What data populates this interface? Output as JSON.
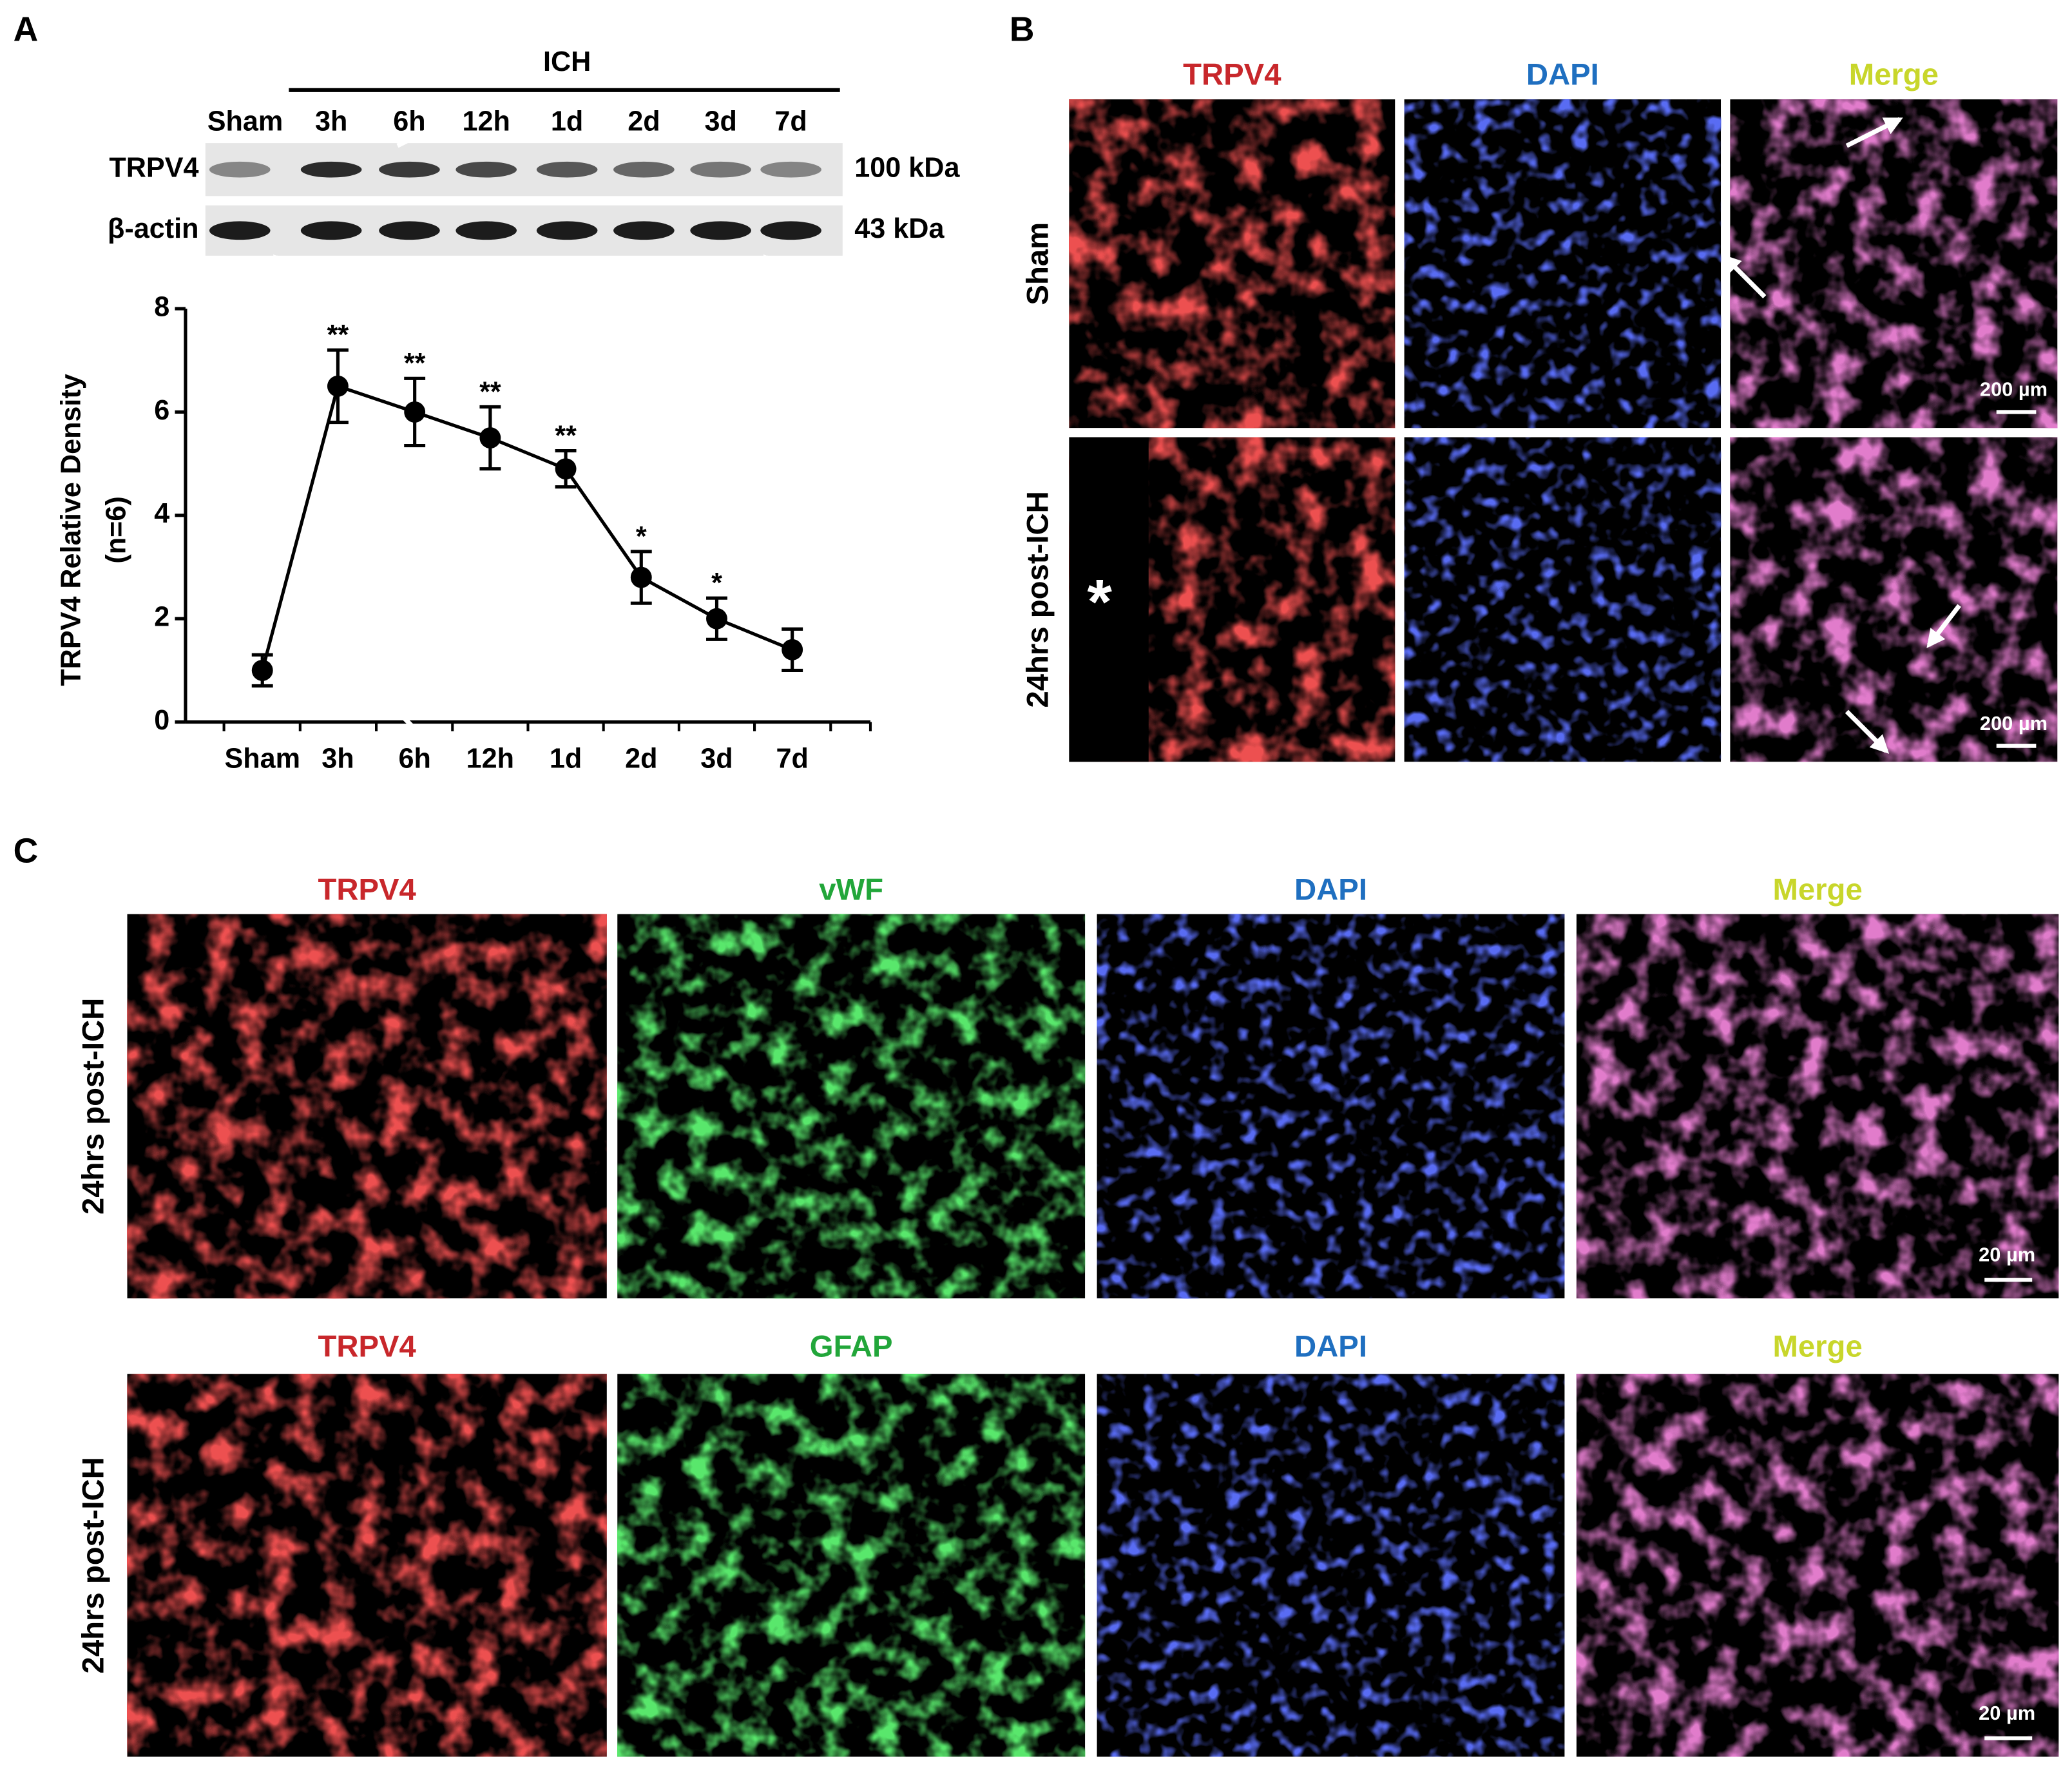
{
  "panel_a": {
    "label": "A",
    "blot": {
      "group": "ICH",
      "lanes": [
        "Sham",
        "3h",
        "6h",
        "12h",
        "1d",
        "2d",
        "3d",
        "7d"
      ],
      "rows": [
        {
          "name": "TRPV4",
          "size": "100 kDa"
        },
        {
          "name": "β-actin",
          "size": "43 kDa"
        }
      ]
    }
  },
  "chart_data": {
    "type": "line",
    "ylabel": [
      "TRPV4 Relative Density",
      "(n=6)"
    ],
    "categories": [
      "Sham",
      "3h",
      "6h",
      "12h",
      "1d",
      "2d",
      "3d",
      "7d"
    ],
    "values": [
      1,
      6.5,
      6,
      5.5,
      4.9,
      2.8,
      2,
      1.4
    ],
    "errors": [
      0.3,
      0.7,
      0.65,
      0.6,
      0.35,
      0.5,
      0.4,
      0.4
    ],
    "significance": [
      null,
      "**",
      "**",
      "**",
      "**",
      "*",
      "*",
      null
    ],
    "color": "#000000",
    "ylim": [
      0,
      8
    ],
    "yticks": [
      0,
      2,
      4,
      6,
      8
    ]
  },
  "panel_b": {
    "label": "B",
    "columns": [
      "TRPV4",
      "DAPI",
      "Merge"
    ],
    "rows": [
      "Sham",
      "24hrs post-ICH"
    ],
    "lesion_mark": "*",
    "scale_bar": "200 µm"
  },
  "panel_c": {
    "label": "C",
    "rows": [
      {
        "name": "24hrs post-ICH",
        "columns": [
          "TRPV4",
          "vWF",
          "DAPI",
          "Merge"
        ]
      },
      {
        "name": "24hrs post-ICH",
        "columns": [
          "TRPV4",
          "GFAP",
          "DAPI",
          "Merge"
        ]
      }
    ],
    "scale_bar": "20 µm"
  }
}
